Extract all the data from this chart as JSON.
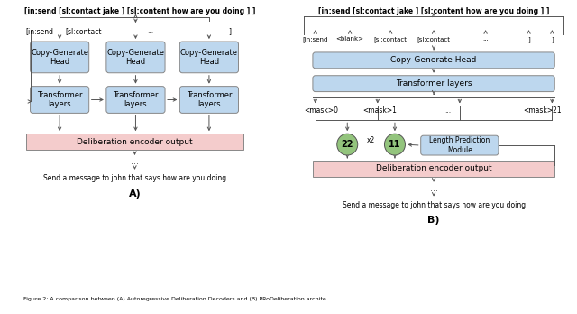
{
  "title_caption": "Figure 2: A comparison between (A) Autoregressive Deliberation Decoders and (B) PRoDeliberation archite...",
  "bg_color": "#ffffff",
  "blue_box_color": "#BDD7EE",
  "pink_box_color": "#F4CCCC",
  "green_circle_color": "#93C47D",
  "label_A": "A)",
  "label_B": "B)",
  "bottom_text": "Send a message to john that says how are you doing",
  "top_text_A": "[in:send [sl:contact jake ] [sl:content how are you doing ] ]",
  "top_text_B": "[in:send [sl:contact jake ] [sl:content how are you doing ] ]",
  "second_row_B_labels": [
    "[in:send",
    "<blank>",
    "[sl:contact",
    "[sl:contact",
    "...",
    "]",
    "]"
  ],
  "mask_labels": [
    "<mask>0",
    "<mask>1",
    "...",
    "<mask>21"
  ],
  "box_A_enc": "Deliberation encoder output",
  "box_B_cg": "Copy-Generate Head",
  "box_B_tr": "Transformer layers",
  "box_B_enc": "Deliberation encoder output",
  "box_B_lpm": "Length Prediction\nModule",
  "num_22": "22",
  "num_11": "11",
  "x2_label": "x2"
}
